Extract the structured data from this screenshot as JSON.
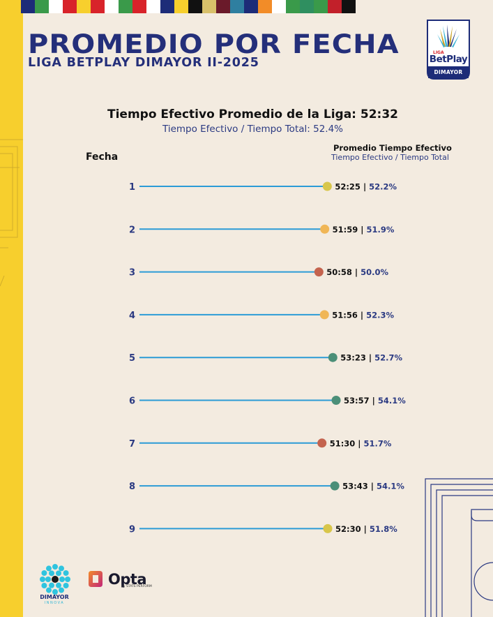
{
  "header": {
    "title": "PROMEDIO POR FECHA",
    "subtitle": "LIGA BETPLAY DIMAYOR II-2025"
  },
  "logo": {
    "liga": "LIGA",
    "brand": "BetPlay",
    "org": "DIMAYOR",
    "icon": "liga-betplay-trophy-icon"
  },
  "summary": {
    "title": "Tiempo Efectivo Promedio de la Liga: 52:32",
    "subtitle": "Tiempo Efectivo / Tiempo Total: 52.4%"
  },
  "table": {
    "row_header": "Fecha",
    "value_header": "Promedio Tiempo Efectivo",
    "value_subheader": "Tiempo Efectivo / Tiempo Total"
  },
  "chart_data": {
    "type": "lollipop",
    "title": "Tiempo Efectivo Promedio de la Liga: 52:32",
    "categories": [
      "1",
      "2",
      "3",
      "4",
      "5",
      "6",
      "7",
      "8",
      "9"
    ],
    "series": [
      {
        "name": "Promedio Tiempo Efectivo",
        "values": [
          "52:25",
          "51:59",
          "50:58",
          "51:56",
          "53:23",
          "53:57",
          "51:30",
          "53:43",
          "52:30"
        ]
      },
      {
        "name": "Tiempo Efectivo / Tiempo Total",
        "values": [
          "52.2%",
          "51.9%",
          "50.0%",
          "52.3%",
          "52.7%",
          "54.1%",
          "51.7%",
          "54.1%",
          "51.8%"
        ]
      }
    ],
    "minutes": [
      52.42,
      51.98,
      50.97,
      51.93,
      53.38,
      53.95,
      51.5,
      53.72,
      52.5
    ],
    "dot_colors": [
      "#d8c64a",
      "#f0b656",
      "#c4634e",
      "#f0b656",
      "#4b8f78",
      "#4b8f78",
      "#c4634e",
      "#4b8f78",
      "#d8c64a"
    ],
    "line_color": "#2b9bd6",
    "value_color": "#111111",
    "percent_color": "#2b3a82"
  },
  "footer": {
    "dimayor": "DIMAYOR",
    "innova": "INNOVA",
    "opta": "Opta",
    "opta_sub": "by STATS PERFORM"
  },
  "colors": {
    "background": "#f3ebe0",
    "accent_yellow": "#f7cf2d",
    "navy": "#242f7a"
  }
}
